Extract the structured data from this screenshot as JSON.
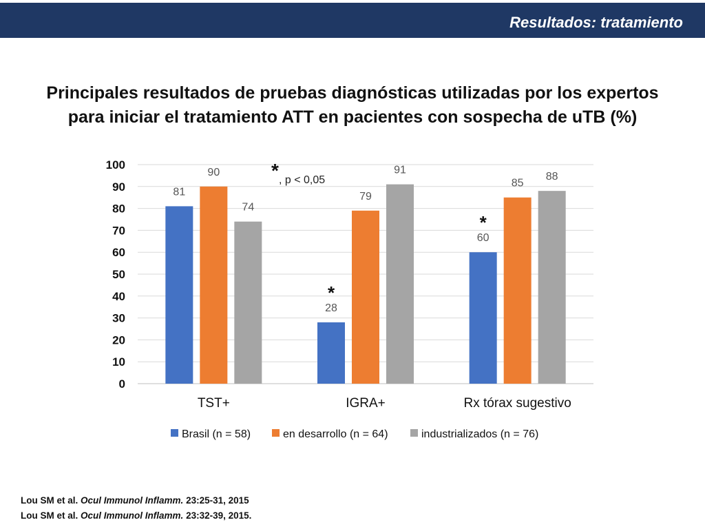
{
  "header": {
    "title": "Resultados: tratamiento"
  },
  "main_title": {
    "line1": "Principales resultados de pruebas diagnósticas utilizadas por los expertos",
    "line2": "para iniciar el tratamiento ATT en pacientes con sospecha de uTB (%)"
  },
  "significance_note": {
    "marker": "*",
    "text": ", p < 0,05"
  },
  "chart_data": {
    "type": "bar",
    "categories": [
      "TST+",
      "IGRA+",
      "Rx tórax sugestivo"
    ],
    "series": [
      {
        "name": "Brasil (n = 58)",
        "values": [
          81,
          28,
          60
        ],
        "color": "#4472c4",
        "significant": [
          false,
          true,
          true
        ]
      },
      {
        "name": "en desarrollo (n = 64)",
        "values": [
          90,
          79,
          85
        ],
        "color": "#ed7d31",
        "significant": [
          false,
          false,
          false
        ]
      },
      {
        "name": "industrializados (n = 76)",
        "values": [
          74,
          91,
          88
        ],
        "color": "#a5a5a5",
        "significant": [
          false,
          false,
          false
        ]
      }
    ],
    "ylim": [
      0,
      100
    ],
    "yticks": [
      0,
      10,
      20,
      30,
      40,
      50,
      60,
      70,
      80,
      90,
      100
    ],
    "grid": true,
    "legend_position": "bottom",
    "data_labels": true
  },
  "references": [
    {
      "authors": "Lou SM  et al.",
      "journal": "Ocul Immunol Inflamm.",
      "details": "23:25-31, 2015"
    },
    {
      "authors": "Lou SM  et al.",
      "journal": "Ocul Immunol Inflamm.",
      "details": "23:32-39, 2015."
    }
  ]
}
